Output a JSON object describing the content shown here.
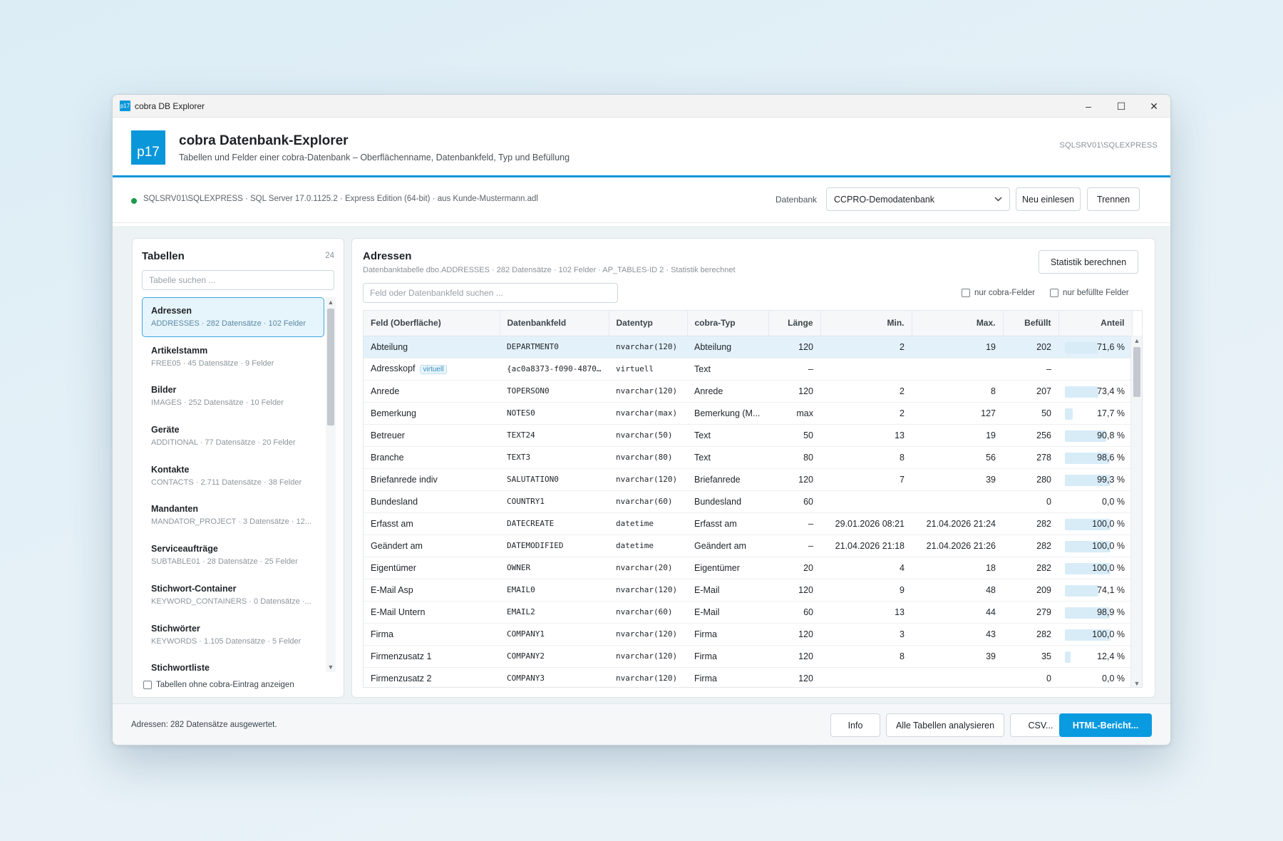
{
  "window": {
    "title": "cobra DB Explorer",
    "logo_text": "p17",
    "controls": {
      "minimize": "–",
      "maximize": "☐",
      "close": "✕"
    }
  },
  "header": {
    "logo_text": "p17",
    "title": "cobra Datenbank-Explorer",
    "subtitle": "Tabellen und Felder einer cobra-Datenbank – Oberflächenname, Datenbankfeld, Typ und Befüllung",
    "server": "SQLSRV01\\SQLEXPRESS"
  },
  "connection": {
    "status_color": "#1f9a4c",
    "info": "SQLSRV01\\SQLEXPRESS · SQL Server 17.0.1125.2 · Express Edition (64-bit) · aus Kunde-Mustermann.adl",
    "db_label": "Datenbank",
    "db_selected": "CCPRO-Demodatenbank",
    "reload_button": "Neu einlesen",
    "disconnect_button": "Trennen"
  },
  "tables_panel": {
    "title": "Tabellen",
    "count": "24",
    "search_placeholder": "Tabelle suchen ...",
    "items": [
      {
        "name": "Adressen",
        "meta": "ADDRESSES · 282 Datensätze · 102 Felder",
        "selected": true
      },
      {
        "name": "Artikelstamm",
        "meta": "FREE05 · 45 Datensätze · 9 Felder"
      },
      {
        "name": "Bilder",
        "meta": "IMAGES · 252 Datensätze · 10 Felder"
      },
      {
        "name": "Geräte",
        "meta": "ADDITIONAL · 77 Datensätze · 20 Felder"
      },
      {
        "name": "Kontakte",
        "meta": "CONTACTS · 2.711 Datensätze · 38 Felder"
      },
      {
        "name": "Mandanten",
        "meta": "MANDATOR_PROJECT · 3 Datensätze · 12..."
      },
      {
        "name": "Serviceaufträge",
        "meta": "SUBTABLE01 · 28 Datensätze · 25 Felder"
      },
      {
        "name": "Stichwort-Container",
        "meta": "KEYWORD_CONTAINERS · 0 Datensätze ·..."
      },
      {
        "name": "Stichwörter",
        "meta": "KEYWORDS · 1.105 Datensätze · 5 Felder"
      },
      {
        "name": "Stichwortliste",
        "meta": ""
      }
    ],
    "checkbox_label": "Tabellen ohne cobra-Eintrag anzeigen"
  },
  "main": {
    "title": "Adressen",
    "meta": "Datenbanktabelle dbo.ADDRESSES · 282 Datensätze · 102 Felder · AP_TABLES-ID 2 · Statistik berechnet",
    "stats_button": "Statistik berechnen",
    "search_placeholder": "Feld oder Datenbankfeld suchen ...",
    "filter_cobra": "nur cobra-Felder",
    "filter_filled": "nur befüllte Felder",
    "columns": [
      "Feld (Oberfläche)",
      "Datenbankfeld",
      "Datentyp",
      "cobra-Typ",
      "Länge",
      "Min.",
      "Max.",
      "Befüllt",
      "Anteil"
    ],
    "rows": [
      {
        "feld": "Abteilung",
        "dbfeld": "DEPARTMENT0",
        "typ": "nvarchar(120)",
        "cobra": "Abteilung",
        "laenge": "120",
        "min": "2",
        "max": "19",
        "befuellt": "202",
        "anteil": "71,6 %",
        "pct": 71.6,
        "selected": true
      },
      {
        "feld": "Adresskopf",
        "tag": "virtuell",
        "dbfeld": "{ac0a8373-f090-4870...",
        "typ": "virtuell",
        "cobra": "Text",
        "laenge": "–",
        "min": "",
        "max": "",
        "befuellt": "–",
        "anteil": "",
        "pct": null
      },
      {
        "feld": "Anrede",
        "dbfeld": "TOPERSON0",
        "typ": "nvarchar(120)",
        "cobra": "Anrede",
        "laenge": "120",
        "min": "2",
        "max": "8",
        "befuellt": "207",
        "anteil": "73,4 %",
        "pct": 73.4
      },
      {
        "feld": "Bemerkung",
        "dbfeld": "NOTES0",
        "typ": "nvarchar(max)",
        "cobra": "Bemerkung (M...",
        "laenge": "max",
        "min": "2",
        "max": "127",
        "befuellt": "50",
        "anteil": "17,7 %",
        "pct": 17.7
      },
      {
        "feld": "Betreuer",
        "dbfeld": "TEXT24",
        "typ": "nvarchar(50)",
        "cobra": "Text",
        "laenge": "50",
        "min": "13",
        "max": "19",
        "befuellt": "256",
        "anteil": "90,8 %",
        "pct": 90.8
      },
      {
        "feld": "Branche",
        "dbfeld": "TEXT3",
        "typ": "nvarchar(80)",
        "cobra": "Text",
        "laenge": "80",
        "min": "8",
        "max": "56",
        "befuellt": "278",
        "anteil": "98,6 %",
        "pct": 98.6
      },
      {
        "feld": "Briefanrede indiv",
        "dbfeld": "SALUTATION0",
        "typ": "nvarchar(120)",
        "cobra": "Briefanrede",
        "laenge": "120",
        "min": "7",
        "max": "39",
        "befuellt": "280",
        "anteil": "99,3 %",
        "pct": 99.3
      },
      {
        "feld": "Bundesland",
        "dbfeld": "COUNTRY1",
        "typ": "nvarchar(60)",
        "cobra": "Bundesland",
        "laenge": "60",
        "min": "",
        "max": "",
        "befuellt": "0",
        "anteil": "0,0 %",
        "pct": 0
      },
      {
        "feld": "Erfasst am",
        "dbfeld": "DATECREATE",
        "typ": "datetime",
        "cobra": "Erfasst am",
        "laenge": "–",
        "min": "29.01.2026 08:21",
        "max": "21.04.2026 21:24",
        "befuellt": "282",
        "anteil": "100,0 %",
        "pct": 100
      },
      {
        "feld": "Geändert am",
        "dbfeld": "DATEMODIFIED",
        "typ": "datetime",
        "cobra": "Geändert am",
        "laenge": "–",
        "min": "21.04.2026 21:18",
        "max": "21.04.2026 21:26",
        "befuellt": "282",
        "anteil": "100,0 %",
        "pct": 100
      },
      {
        "feld": "Eigentümer",
        "dbfeld": "OWNER",
        "typ": "nvarchar(20)",
        "cobra": "Eigentümer",
        "laenge": "20",
        "min": "4",
        "max": "18",
        "befuellt": "282",
        "anteil": "100,0 %",
        "pct": 100
      },
      {
        "feld": "E-Mail Asp",
        "dbfeld": "EMAIL0",
        "typ": "nvarchar(120)",
        "cobra": "E-Mail",
        "laenge": "120",
        "min": "9",
        "max": "48",
        "befuellt": "209",
        "anteil": "74,1 %",
        "pct": 74.1
      },
      {
        "feld": "E-Mail Untern",
        "dbfeld": "EMAIL2",
        "typ": "nvarchar(60)",
        "cobra": "E-Mail",
        "laenge": "60",
        "min": "13",
        "max": "44",
        "befuellt": "279",
        "anteil": "98,9 %",
        "pct": 98.9
      },
      {
        "feld": "Firma",
        "dbfeld": "COMPANY1",
        "typ": "nvarchar(120)",
        "cobra": "Firma",
        "laenge": "120",
        "min": "3",
        "max": "43",
        "befuellt": "282",
        "anteil": "100,0 %",
        "pct": 100
      },
      {
        "feld": "Firmenzusatz 1",
        "dbfeld": "COMPANY2",
        "typ": "nvarchar(120)",
        "cobra": "Firma",
        "laenge": "120",
        "min": "8",
        "max": "39",
        "befuellt": "35",
        "anteil": "12,4 %",
        "pct": 12.4
      },
      {
        "feld": "Firmenzusatz 2",
        "dbfeld": "COMPANY3",
        "typ": "nvarchar(120)",
        "cobra": "Firma",
        "laenge": "120",
        "min": "",
        "max": "",
        "befuellt": "0",
        "anteil": "0,0 %",
        "pct": 0
      }
    ]
  },
  "footer": {
    "status": "Adressen: 282 Datensätze ausgewertet.",
    "info_button": "Info",
    "analyze_button": "Alle Tabellen analysieren",
    "csv_button": "CSV...",
    "html_button": "HTML-Bericht..."
  },
  "colors": {
    "accent": "#0a97d9",
    "primary_button": "#0a9ae0",
    "bar": "#d8ecf8",
    "selection": "#e3f1fa"
  }
}
